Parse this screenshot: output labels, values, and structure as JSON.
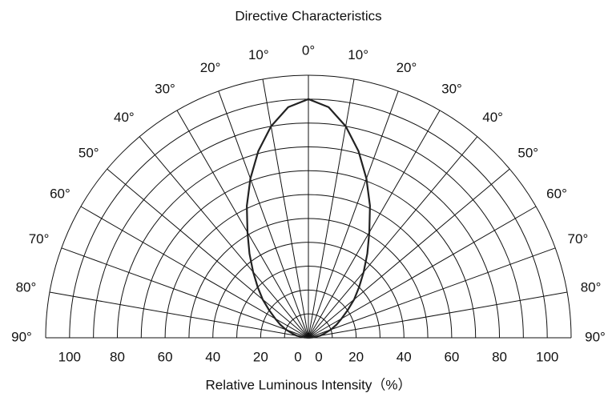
{
  "chart_data": {
    "type": "polar",
    "title": "Directive Characteristics",
    "x_label": "Relative Luminous Intensity（%）",
    "angles": [
      -90,
      -85,
      -80,
      -75,
      -70,
      -65,
      -60,
      -55,
      -50,
      -45,
      -40,
      -35,
      -30,
      -25,
      -20,
      -15,
      -10,
      -5,
      0,
      5,
      10,
      15,
      20,
      25,
      30,
      35,
      40,
      45,
      50,
      55,
      60,
      65,
      70,
      75,
      80,
      85,
      90
    ],
    "values": [
      0,
      2,
      5,
      7,
      10,
      13,
      16,
      20,
      25,
      30,
      36,
      43,
      51,
      61,
      71,
      81,
      90,
      97,
      100,
      97,
      90,
      81,
      71,
      61,
      51,
      43,
      36,
      30,
      25,
      20,
      16,
      13,
      10,
      7,
      5,
      2,
      0
    ],
    "color": "#222222",
    "rlim": [
      0,
      110
    ],
    "rgrid": [
      10,
      20,
      30,
      40,
      50,
      60,
      70,
      80,
      90,
      100,
      110
    ],
    "rticks": [
      {
        "value": -100,
        "label": "100"
      },
      {
        "value": -80,
        "label": "80"
      },
      {
        "value": -60,
        "label": "60"
      },
      {
        "value": -40,
        "label": "40"
      },
      {
        "value": -20,
        "label": "20"
      },
      {
        "value": -0.001,
        "label": "0"
      },
      {
        "value": 0,
        "label": "0"
      },
      {
        "value": 20,
        "label": "20"
      },
      {
        "value": 40,
        "label": "40"
      },
      {
        "value": 60,
        "label": "60"
      },
      {
        "value": 80,
        "label": "80"
      },
      {
        "value": 100,
        "label": "100"
      }
    ],
    "theta_ticks": [
      {
        "value": -90,
        "label": "90°"
      },
      {
        "value": -80,
        "label": "80°"
      },
      {
        "value": -70,
        "label": "70°"
      },
      {
        "value": -60,
        "label": "60°"
      },
      {
        "value": -50,
        "label": "50°"
      },
      {
        "value": -40,
        "label": "40°"
      },
      {
        "value": -30,
        "label": "30°"
      },
      {
        "value": -20,
        "label": "20°"
      },
      {
        "value": -10,
        "label": "10°"
      },
      {
        "value": 0,
        "label": "0°"
      },
      {
        "value": 10,
        "label": "10°"
      },
      {
        "value": 20,
        "label": "20°"
      },
      {
        "value": 30,
        "label": "30°"
      },
      {
        "value": 40,
        "label": "40°"
      },
      {
        "value": 50,
        "label": "50°"
      },
      {
        "value": 60,
        "label": "60°"
      },
      {
        "value": 70,
        "label": "70°"
      },
      {
        "value": 80,
        "label": "80°"
      },
      {
        "value": 90,
        "label": "90°"
      }
    ]
  }
}
